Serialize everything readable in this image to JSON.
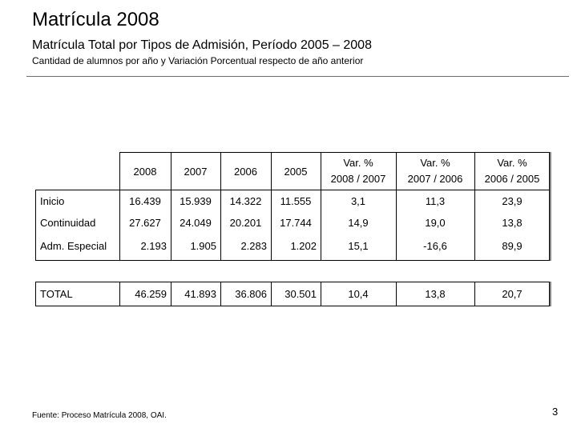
{
  "page": {
    "title": "Matrícula 2008",
    "subtitle": "Matrícula Total por Tipos de Admisión, Período 2005 – 2008",
    "caption": "Cantidad de alumnos por año y Variación Porcentual respecto de año anterior",
    "footer": "Fuente: Proceso Matrícula 2008, OAI.",
    "page_number": "3"
  },
  "table": {
    "year_headers": [
      "2008",
      "2007",
      "2006",
      "2005"
    ],
    "var_headers": [
      {
        "line1": "Var. %",
        "line2": "2008 / 2007"
      },
      {
        "line1": "Var. %",
        "line2": "2007 / 2006"
      },
      {
        "line1": "Var. %",
        "line2": "2006 / 2005"
      }
    ],
    "rows": [
      {
        "label": "Inicio",
        "values": [
          "16.439",
          "15.939",
          "14.322",
          "11.555"
        ],
        "vars": [
          "3,1",
          "11,3",
          "23,9"
        ]
      },
      {
        "label": "Continuidad",
        "values": [
          "27.627",
          "24.049",
          "20.201",
          "17.744"
        ],
        "vars": [
          "14,9",
          "19,0",
          "13,8"
        ]
      },
      {
        "label": "Adm. Especial",
        "values": [
          "2.193",
          "1.905",
          "2.283",
          "1.202"
        ],
        "vars": [
          "15,1",
          "-16,6",
          "89,9"
        ]
      }
    ],
    "total": {
      "label": "TOTAL",
      "values": [
        "46.259",
        "41.893",
        "36.806",
        "30.501"
      ],
      "vars": [
        "10,4",
        "13,8",
        "20,7"
      ]
    }
  }
}
